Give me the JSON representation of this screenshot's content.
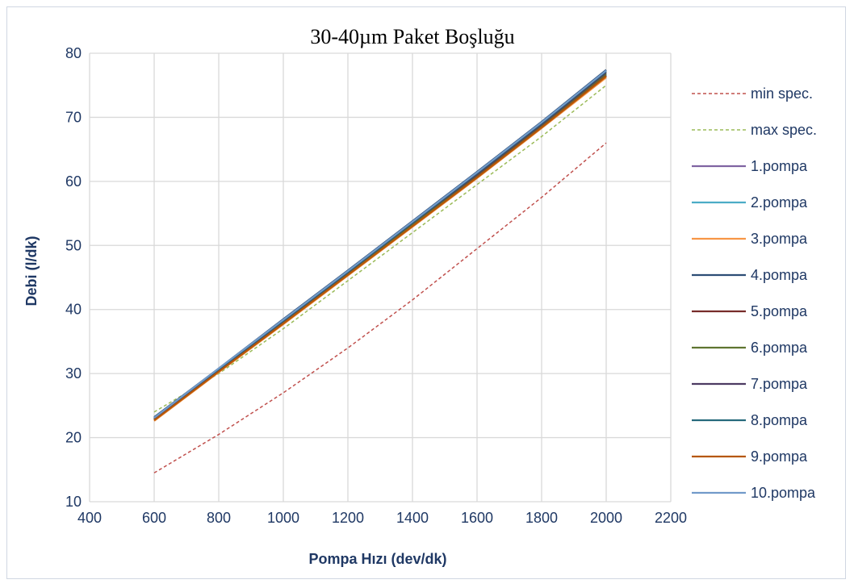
{
  "chart_data": {
    "type": "line",
    "title": "30-40µm Paket Boşluğu",
    "xlabel": "Pompa Hızı (dev/dk)",
    "ylabel": "Debi (l/dk)",
    "xlim": [
      400,
      2200
    ],
    "ylim": [
      10,
      80
    ],
    "xticks": [
      400,
      600,
      800,
      1000,
      1200,
      1400,
      1600,
      1800,
      2000,
      2200
    ],
    "yticks": [
      10,
      20,
      30,
      40,
      50,
      60,
      70,
      80
    ],
    "grid": true,
    "legend_position": "right",
    "x": [
      600,
      800,
      1000,
      1200,
      1400,
      1600,
      1800,
      2000
    ],
    "series": [
      {
        "name": "min spec.",
        "color": "#c0504d",
        "dashed": true,
        "values": [
          14.5,
          20.5,
          27.0,
          34.0,
          41.5,
          49.5,
          57.5,
          66.0
        ]
      },
      {
        "name": "max spec.",
        "color": "#9bbb59",
        "dashed": true,
        "values": [
          24.0,
          30.0,
          37.0,
          44.5,
          52.0,
          59.5,
          67.0,
          75.0
        ]
      },
      {
        "name": "1.pompa",
        "color": "#8064a2",
        "dashed": false,
        "values": [
          22.8,
          30.4,
          38.0,
          45.6,
          53.2,
          60.8,
          68.6,
          76.6
        ]
      },
      {
        "name": "2.pompa",
        "color": "#4bacc6",
        "dashed": false,
        "values": [
          22.9,
          30.5,
          38.1,
          45.7,
          53.3,
          60.9,
          68.7,
          76.7
        ]
      },
      {
        "name": "3.pompa",
        "color": "#f79646",
        "dashed": false,
        "values": [
          22.6,
          30.2,
          37.7,
          45.3,
          52.9,
          60.5,
          68.3,
          76.2
        ]
      },
      {
        "name": "4.pompa",
        "color": "#2c4d75",
        "dashed": false,
        "values": [
          23.2,
          30.8,
          38.5,
          46.1,
          53.8,
          61.5,
          69.3,
          77.4
        ]
      },
      {
        "name": "5.pompa",
        "color": "#772c2a",
        "dashed": false,
        "values": [
          22.8,
          30.4,
          37.9,
          45.5,
          53.1,
          60.7,
          68.5,
          76.5
        ]
      },
      {
        "name": "6.pompa",
        "color": "#5f7530",
        "dashed": false,
        "values": [
          22.9,
          30.5,
          38.1,
          45.7,
          53.3,
          61.0,
          68.8,
          76.8
        ]
      },
      {
        "name": "7.pompa",
        "color": "#4d3b62",
        "dashed": false,
        "values": [
          23.0,
          30.6,
          38.2,
          45.8,
          53.5,
          61.1,
          68.9,
          77.0
        ]
      },
      {
        "name": "8.pompa",
        "color": "#276a7c",
        "dashed": false,
        "values": [
          23.1,
          30.7,
          38.3,
          45.9,
          53.6,
          61.3,
          69.1,
          77.2
        ]
      },
      {
        "name": "9.pompa",
        "color": "#b65708",
        "dashed": false,
        "values": [
          22.7,
          30.3,
          37.8,
          45.4,
          53.0,
          60.6,
          68.4,
          76.4
        ]
      },
      {
        "name": "10.pompa",
        "color": "#729aca",
        "dashed": false,
        "values": [
          23.1,
          30.8,
          38.4,
          46.0,
          53.7,
          61.4,
          69.2,
          77.3
        ]
      }
    ]
  }
}
